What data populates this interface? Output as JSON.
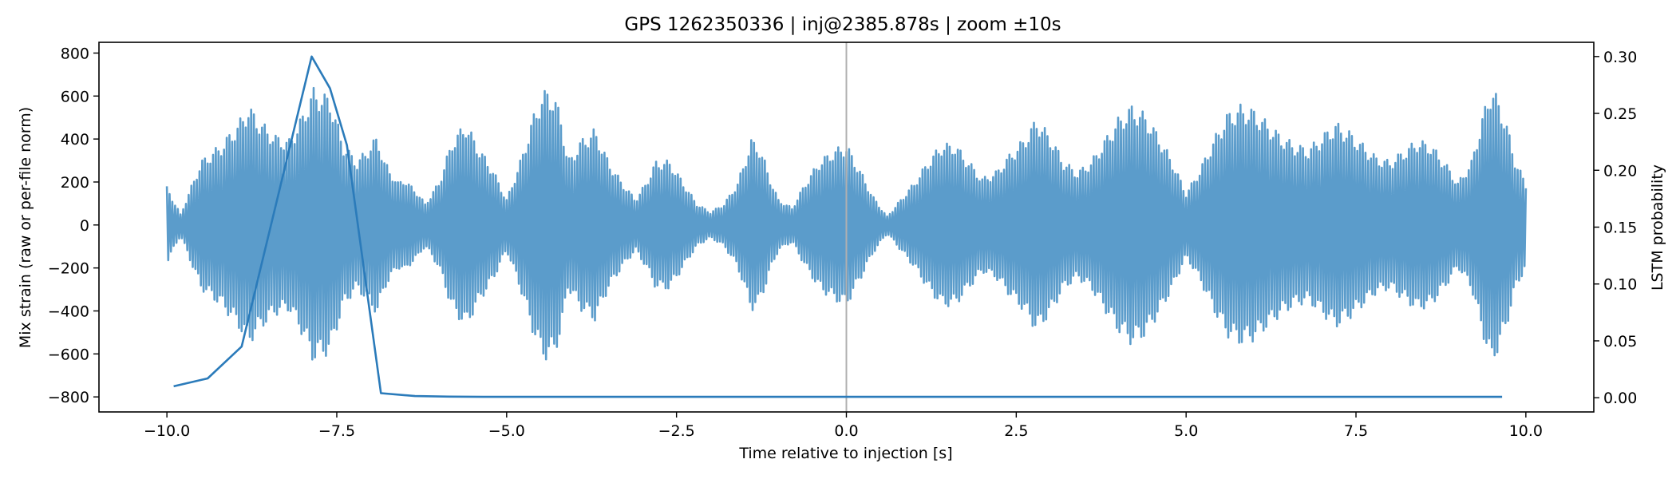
{
  "chart_data": {
    "type": "line",
    "title": "GPS 1262350336 | inj@2385.878s | zoom ±10s",
    "xlabel": "Time relative to injection [s]",
    "ylabel_left": "Mix strain (raw or per-file norm)",
    "ylabel_right": "LSTM probability",
    "xlim": [
      -11.0,
      11.0
    ],
    "ylim_left": [
      -870,
      850
    ],
    "ylim_right": [
      -0.0125,
      0.3125
    ],
    "x_ticks": [
      -10.0,
      -7.5,
      -5.0,
      -2.5,
      0.0,
      2.5,
      5.0,
      7.5,
      10.0
    ],
    "x_tick_labels": [
      "−10.0",
      "−7.5",
      "−5.0",
      "−2.5",
      "0.0",
      "2.5",
      "5.0",
      "7.5",
      "10.0"
    ],
    "y_left_ticks": [
      -800,
      -600,
      -400,
      -200,
      0,
      200,
      400,
      600,
      800
    ],
    "y_left_tick_labels": [
      "−800",
      "−600",
      "−400",
      "−200",
      "0",
      "200",
      "400",
      "600",
      "800"
    ],
    "y_right_ticks": [
      0.0,
      0.05,
      0.1,
      0.15,
      0.2,
      0.25,
      0.3
    ],
    "y_right_tick_labels": [
      "0.00",
      "0.05",
      "0.10",
      "0.15",
      "0.20",
      "0.25",
      "0.30"
    ],
    "vline_x": 0.0,
    "grid": false,
    "colors": {
      "strain": "#5b9ccb",
      "prob": "#2b7bba",
      "vline": "#b0b0b0"
    },
    "series": [
      {
        "axis": "left",
        "sample_interval": 0.02,
        "x_start": -10.0,
        "x_end": 10.0,
        "envelope": {
          "x": [
            -10.0,
            -9.8,
            -9.5,
            -9.2,
            -8.95,
            -8.8,
            -8.6,
            -8.4,
            -8.2,
            -8.0,
            -7.85,
            -7.6,
            -7.4,
            -7.2,
            -7.0,
            -6.9,
            -6.8,
            -6.7,
            -6.6,
            -6.5,
            -6.4,
            -6.3,
            -6.2,
            -6.0,
            -5.8,
            -5.6,
            -5.4,
            -5.2,
            -5.0,
            -4.8,
            -4.6,
            -4.5,
            -4.4,
            -4.3,
            -4.2,
            -4.1,
            -3.9,
            -3.7,
            -3.5,
            -3.3,
            -3.1,
            -2.95,
            -2.8,
            -2.6,
            -2.4,
            -2.2,
            -2.0,
            -1.8,
            -1.6,
            -1.5,
            -1.4,
            -1.3,
            -1.2,
            -1.1,
            -1.0,
            -0.8,
            -0.6,
            -0.4,
            -0.2,
            0.0,
            0.2,
            0.4,
            0.6,
            0.8,
            1.0,
            1.2,
            1.4,
            1.6,
            1.8,
            2.0,
            2.2,
            2.4,
            2.6,
            2.8,
            3.0,
            3.2,
            3.4,
            3.6,
            3.8,
            4.0,
            4.2,
            4.4,
            4.6,
            4.8,
            5.0,
            5.2,
            5.4,
            5.6,
            5.8,
            6.0,
            6.2,
            6.4,
            6.6,
            6.8,
            7.0,
            7.2,
            7.4,
            7.6,
            7.8,
            8.0,
            8.2,
            8.4,
            8.6,
            8.8,
            9.0,
            9.2,
            9.35,
            9.5,
            9.7,
            9.85,
            10.0
          ],
          "amp": [
            180,
            50,
            300,
            380,
            480,
            560,
            480,
            420,
            400,
            520,
            640,
            600,
            380,
            300,
            380,
            420,
            300,
            250,
            200,
            220,
            180,
            150,
            100,
            200,
            400,
            480,
            360,
            260,
            120,
            300,
            520,
            600,
            640,
            600,
            520,
            300,
            400,
            450,
            300,
            200,
            120,
            200,
            300,
            300,
            200,
            100,
            60,
            100,
            200,
            300,
            400,
            380,
            300,
            200,
            120,
            80,
            200,
            300,
            350,
            380,
            260,
            130,
            40,
            120,
            200,
            300,
            380,
            380,
            300,
            220,
            250,
            330,
            400,
            500,
            420,
            300,
            250,
            300,
            400,
            500,
            560,
            520,
            420,
            300,
            150,
            260,
            400,
            520,
            560,
            540,
            480,
            420,
            380,
            360,
            420,
            480,
            440,
            380,
            320,
            300,
            350,
            400,
            380,
            300,
            200,
            300,
            500,
            660,
            500,
            300,
            200
          ]
        }
      },
      {
        "axis": "right",
        "x": [
          -9.9,
          -9.4,
          -8.9,
          -7.87,
          -7.6,
          -7.35,
          -6.85,
          -6.35,
          -5.85,
          -5.35,
          -4.85,
          -4.35,
          -3.85,
          -3.35,
          -2.85,
          -2.35,
          -1.85,
          -1.35,
          -0.85,
          -0.35,
          0.15,
          0.65,
          1.15,
          1.65,
          2.15,
          2.65,
          3.15,
          3.65,
          4.15,
          4.65,
          5.15,
          5.65,
          6.15,
          6.65,
          7.15,
          7.65,
          8.15,
          8.65,
          9.15,
          9.65
        ],
        "values": [
          0.01,
          0.017,
          0.045,
          0.3,
          0.272,
          0.222,
          0.004,
          0.0015,
          0.001,
          0.0008,
          0.0008,
          0.0008,
          0.0008,
          0.0008,
          0.0008,
          0.0008,
          0.0008,
          0.0008,
          0.0008,
          0.0008,
          0.0008,
          0.0008,
          0.0008,
          0.0008,
          0.0008,
          0.0008,
          0.0008,
          0.0008,
          0.0008,
          0.0008,
          0.0008,
          0.0008,
          0.0008,
          0.0008,
          0.0008,
          0.0008,
          0.0008,
          0.0008,
          0.0008,
          0.0008
        ]
      }
    ]
  }
}
